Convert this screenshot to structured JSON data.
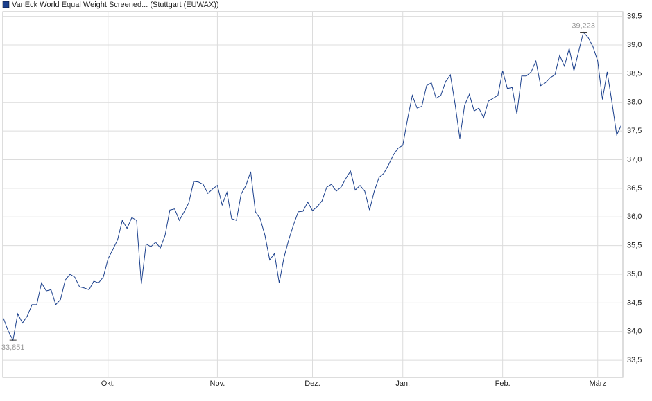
{
  "chart_data": {
    "type": "line",
    "series": [
      {
        "name": "VanEck World Equal Weight Screened... (Stuttgart (EUWAX))",
        "color": "#1a3f8c",
        "values": [
          34.23,
          34.01,
          33.851,
          34.31,
          34.15,
          34.27,
          34.47,
          34.47,
          34.85,
          34.71,
          34.73,
          34.47,
          34.56,
          34.9,
          35.0,
          34.95,
          34.78,
          34.76,
          34.73,
          34.88,
          34.85,
          34.95,
          35.27,
          35.43,
          35.6,
          35.94,
          35.8,
          35.99,
          35.94,
          34.83,
          35.53,
          35.48,
          35.56,
          35.46,
          35.68,
          36.12,
          36.14,
          35.94,
          36.09,
          36.25,
          36.62,
          36.61,
          36.57,
          36.41,
          36.49,
          36.55,
          36.21,
          36.43,
          35.97,
          35.94,
          36.4,
          36.55,
          36.79,
          36.09,
          35.97,
          35.68,
          35.25,
          35.36,
          34.85,
          35.29,
          35.6,
          35.86,
          36.09,
          36.1,
          36.26,
          36.11,
          36.18,
          36.28,
          36.52,
          36.57,
          36.45,
          36.52,
          36.67,
          36.8,
          36.47,
          36.55,
          36.45,
          36.12,
          36.45,
          36.69,
          36.76,
          36.91,
          37.08,
          37.2,
          37.25,
          37.71,
          38.12,
          37.9,
          37.93,
          38.29,
          38.34,
          38.07,
          38.12,
          38.36,
          38.48,
          37.97,
          37.37,
          37.95,
          38.14,
          37.85,
          37.9,
          37.73,
          38.02,
          38.07,
          38.12,
          38.55,
          38.24,
          38.26,
          37.8,
          38.46,
          38.46,
          38.53,
          38.72,
          38.29,
          38.34,
          38.43,
          38.48,
          38.82,
          38.63,
          38.94,
          38.55,
          38.89,
          39.223,
          39.13,
          38.97,
          38.72,
          38.05,
          38.53,
          38.0,
          37.43,
          37.61
        ]
      }
    ],
    "annotations": [
      {
        "x": 122,
        "label": "39,223"
      },
      {
        "x": 2,
        "label": "33,851"
      }
    ],
    "xlim": [
      0,
      130
    ],
    "xticks": [
      {
        "value": 22,
        "label": "Okt."
      },
      {
        "value": 45,
        "label": "Nov."
      },
      {
        "value": 65,
        "label": "Dez."
      },
      {
        "value": 84,
        "label": "Jan."
      },
      {
        "value": 105,
        "label": "Feb."
      },
      {
        "value": 125,
        "label": "März"
      }
    ],
    "ylim": [
      33.2,
      39.58
    ],
    "yticks": [
      {
        "value": 33.5,
        "label": "33,5"
      },
      {
        "value": 34,
        "label": "34,0"
      },
      {
        "value": 34.5,
        "label": "34,5"
      },
      {
        "value": 35,
        "label": "35,0"
      },
      {
        "value": 35.5,
        "label": "35,5"
      },
      {
        "value": 36,
        "label": "36,0"
      },
      {
        "value": 36.5,
        "label": "36,5"
      },
      {
        "value": 37,
        "label": "37,0"
      },
      {
        "value": 37.5,
        "label": "37,5"
      },
      {
        "value": 38,
        "label": "38,0"
      },
      {
        "value": 38.5,
        "label": "38,5"
      },
      {
        "value": 39,
        "label": "39,0"
      },
      {
        "value": 39.5,
        "label": "39,5"
      }
    ],
    "grid": true
  }
}
